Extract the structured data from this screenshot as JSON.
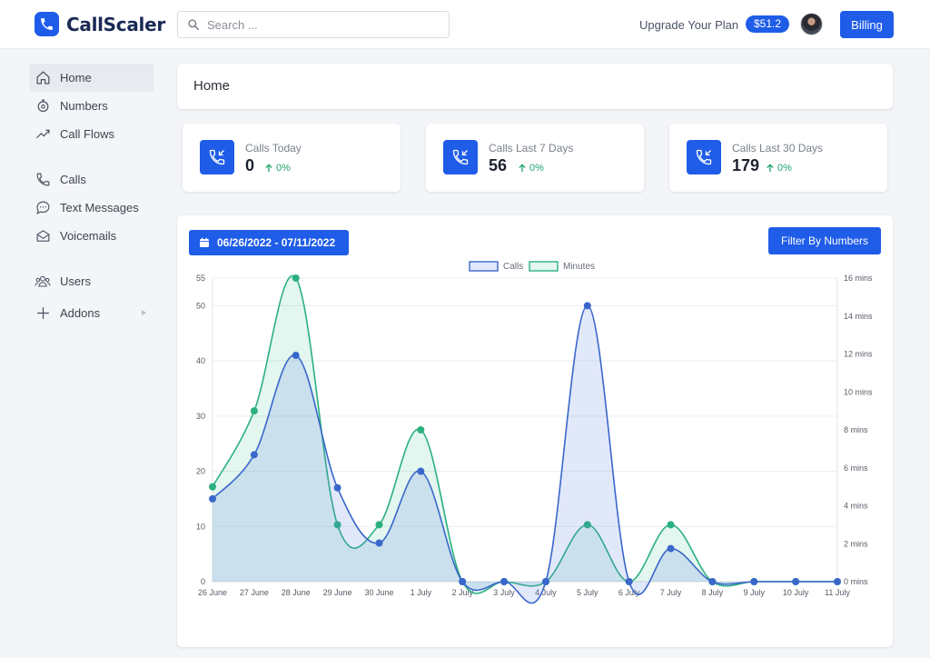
{
  "header": {
    "brand": "CallScaler",
    "search_placeholder": "Search ...",
    "upgrade_label": "Upgrade Your Plan",
    "balance": "$51.2",
    "billing_label": "Billing"
  },
  "sidebar": {
    "items": [
      {
        "label": "Home",
        "icon": "home-icon"
      },
      {
        "label": "Numbers",
        "icon": "numbers-icon"
      },
      {
        "label": "Call Flows",
        "icon": "call-flows-icon"
      },
      {
        "label": "Calls",
        "icon": "phone-icon"
      },
      {
        "label": "Text Messages",
        "icon": "chat-icon"
      },
      {
        "label": "Voicemails",
        "icon": "envelope-icon"
      },
      {
        "label": "Users",
        "icon": "users-icon"
      },
      {
        "label": "Addons",
        "icon": "plus-icon"
      }
    ]
  },
  "page": {
    "title": "Home"
  },
  "stats": [
    {
      "label": "Calls Today",
      "value": "0",
      "change": "0%"
    },
    {
      "label": "Calls Last 7 Days",
      "value": "56",
      "change": "0%"
    },
    {
      "label": "Calls Last 30 Days",
      "value": "179",
      "change": "0%"
    }
  ],
  "chart_panel": {
    "date_range": "06/26/2022 - 07/11/2022",
    "filter_label": "Filter By Numbers"
  },
  "colors": {
    "accent": "#1f5ce8",
    "calls_line": "#3a67cc",
    "minutes_line": "#2bb07f",
    "positive": "#1fa36b"
  },
  "chart_data": {
    "type": "area",
    "categories": [
      "26 June",
      "27 June",
      "28 June",
      "29 June",
      "30 June",
      "1 July",
      "2 July",
      "3 July",
      "4 July",
      "5 July",
      "6 July",
      "7 July",
      "8 July",
      "9 July",
      "10 July",
      "11 July"
    ],
    "series": [
      {
        "name": "Calls",
        "axis": "left",
        "values": [
          15,
          23,
          41,
          17,
          7,
          20,
          0,
          0,
          0,
          50,
          0,
          6,
          0,
          0,
          0,
          0
        ]
      },
      {
        "name": "Minutes",
        "axis": "right",
        "values": [
          5,
          9,
          16,
          3,
          3,
          8,
          0,
          0,
          0,
          3,
          0,
          3,
          0,
          0,
          0,
          0
        ]
      }
    ],
    "left_axis": {
      "ylim": [
        0,
        55
      ],
      "ticks": [
        "0",
        "10",
        "20",
        "30",
        "40",
        "50",
        "55"
      ],
      "tick_values": [
        0,
        10,
        20,
        30,
        40,
        50,
        55
      ]
    },
    "right_axis": {
      "ylim": [
        0,
        16
      ],
      "ticks": [
        "0 mins",
        "2 mins",
        "4 mins",
        "6 mins",
        "8 mins",
        "10 mins",
        "12 mins",
        "14 mins",
        "16 mins"
      ],
      "tick_values": [
        0,
        2,
        4,
        6,
        8,
        10,
        12,
        14,
        16
      ]
    },
    "legend": [
      "Calls",
      "Minutes"
    ],
    "legend_position": "top-center",
    "grid": true
  }
}
